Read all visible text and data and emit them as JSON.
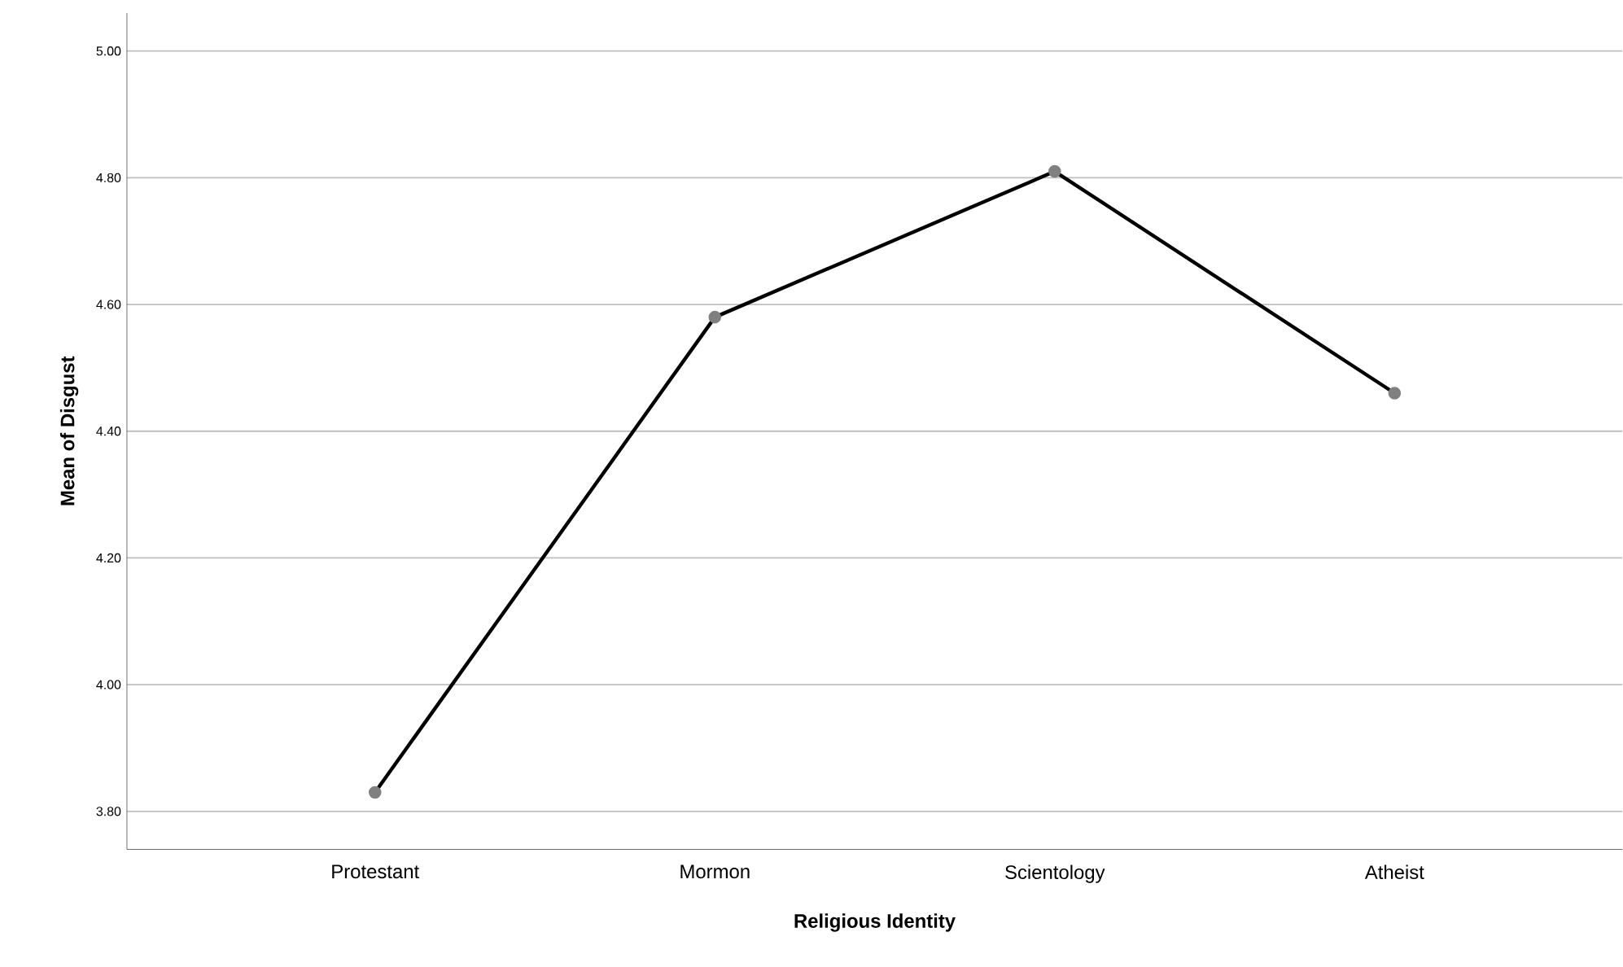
{
  "chart_data": {
    "type": "line",
    "xlabel": "Religious Identity",
    "ylabel": "Mean of Disgust",
    "categories": [
      "Protestant",
      "Mormon",
      "Scientology",
      "Atheist"
    ],
    "series": [
      {
        "color": "#000000",
        "values": [
          3.83,
          4.58,
          4.81,
          4.46
        ]
      }
    ],
    "ylim": [
      3.74,
      5.06
    ],
    "yticks": [
      {
        "value": 3.8,
        "label": "3.80"
      },
      {
        "value": 4.0,
        "label": "4.00"
      },
      {
        "value": 4.2,
        "label": "4.20"
      },
      {
        "value": 4.4,
        "label": "4.40"
      },
      {
        "value": 4.6,
        "label": "4.60"
      },
      {
        "value": 4.8,
        "label": "4.80"
      },
      {
        "value": 5.0,
        "label": "5.00"
      }
    ],
    "grid": "y",
    "marker": "circle",
    "line_style": "solid"
  }
}
